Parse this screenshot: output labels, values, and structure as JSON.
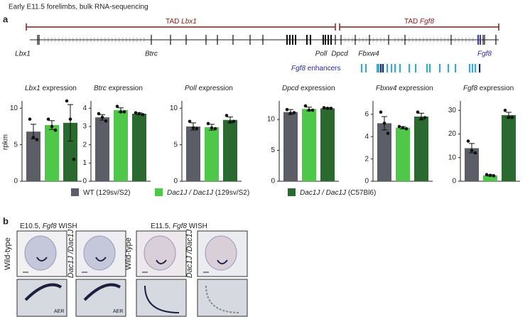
{
  "header": {
    "caption": "Early E11.5 forelimbs, bulk RNA-sequencing",
    "panel_a": "a",
    "panel_b": "b"
  },
  "tads": [
    {
      "prefix": "TAD",
      "gene": "Lbx1"
    },
    {
      "prefix": "TAD",
      "gene": "Fgf8"
    }
  ],
  "genes": [
    "Lbx1",
    "Btrc",
    "Poll",
    "Dpcd",
    "Fbxw4",
    "Fgf8"
  ],
  "enhancers": {
    "gene": "Fgf8",
    "rest": "enhancers"
  },
  "legend": [
    {
      "name": "WT (129sv/S2)",
      "color": "#5b5e66"
    },
    {
      "italic": "Dac1J / Dac1J",
      "name": "(129sv/S2)",
      "color": "#4fc84a"
    },
    {
      "italic": "Dac1J / Dac1J",
      "name": "(C57Bl6)",
      "color": "#2a6a2e"
    }
  ],
  "chart_data": [
    {
      "type": "bar",
      "title_gene": "Lbx1",
      "title_rest": "expression",
      "ylabel": "rpkm",
      "ylim": [
        0,
        11
      ],
      "yticks": [
        0,
        5,
        10
      ],
      "values": [
        6.8,
        7.7,
        8.0
      ],
      "errors": [
        1.0,
        0.6,
        2.5
      ],
      "points": [
        [
          8.5,
          6.0,
          5.7
        ],
        [
          8.5,
          7.5,
          7.0
        ],
        [
          11,
          8.5,
          3
        ]
      ]
    },
    {
      "type": "bar",
      "title_gene": "Btrc",
      "title_rest": "expression",
      "ylim": [
        0,
        4.4
      ],
      "yticks": [
        0,
        1,
        2,
        3,
        4
      ],
      "values": [
        3.5,
        3.9,
        3.7
      ],
      "errors": [
        0.15,
        0.12,
        0.05
      ],
      "points": [
        [
          3.7,
          3.5,
          3.3
        ],
        [
          4.1,
          3.8,
          3.8
        ],
        [
          3.75,
          3.7,
          3.65
        ]
      ]
    },
    {
      "type": "bar",
      "title_gene": "Poll",
      "title_rest": "expression",
      "ylim": [
        0,
        11
      ],
      "yticks": [
        0,
        5,
        10
      ],
      "values": [
        7.5,
        7.4,
        8.4
      ],
      "errors": [
        0.5,
        0.4,
        0.4
      ],
      "points": [
        [
          8.2,
          7.3,
          7.2
        ],
        [
          7.9,
          7.3,
          7.2
        ],
        [
          9.0,
          8.1,
          8.2
        ]
      ]
    },
    {
      "type": "bar",
      "title_gene": "Dpcd",
      "title_rest": "expression",
      "ylim": [
        0,
        13
      ],
      "yticks": [
        0,
        5,
        10
      ],
      "values": [
        11.2,
        11.7,
        11.8
      ],
      "errors": [
        0.4,
        0.3,
        0.1
      ],
      "points": [
        [
          11.6,
          11.0,
          11.1
        ],
        [
          12.2,
          11.5,
          11.5
        ],
        [
          11.9,
          11.8,
          11.8
        ]
      ]
    },
    {
      "type": "bar",
      "title_gene": "Fbxw4",
      "title_rest": "expression",
      "ylim": [
        0,
        7.2
      ],
      "yticks": [
        0,
        2,
        4,
        6
      ],
      "values": [
        5.2,
        4.8,
        5.8
      ],
      "errors": [
        0.6,
        0.1,
        0.3
      ],
      "points": [
        [
          6.2,
          5.2,
          4.3
        ],
        [
          4.9,
          4.8,
          4.7
        ],
        [
          6.2,
          5.6,
          5.7
        ]
      ]
    },
    {
      "type": "bar",
      "title_gene": "Fgf8",
      "title_rest": "expression",
      "ylim": [
        0,
        34
      ],
      "yticks": [
        0,
        10,
        20,
        30
      ],
      "values": [
        14,
        2.5,
        28
      ],
      "errors": [
        2.0,
        0.3,
        1.2
      ],
      "points": [
        [
          17,
          13,
          12
        ],
        [
          2.8,
          2.5,
          2.3
        ],
        [
          30,
          27,
          27
        ]
      ]
    }
  ],
  "panel_b": {
    "e105": {
      "stage": "E10.5,",
      "gene": "Fgf8",
      "assay": "WISH"
    },
    "e115": {
      "stage": "E11.5,",
      "gene": "Fgf8",
      "assay": "WISH"
    },
    "wild_type": "Wild-type",
    "mutant": "Dac1J /Dac1J",
    "aer": "AER"
  }
}
